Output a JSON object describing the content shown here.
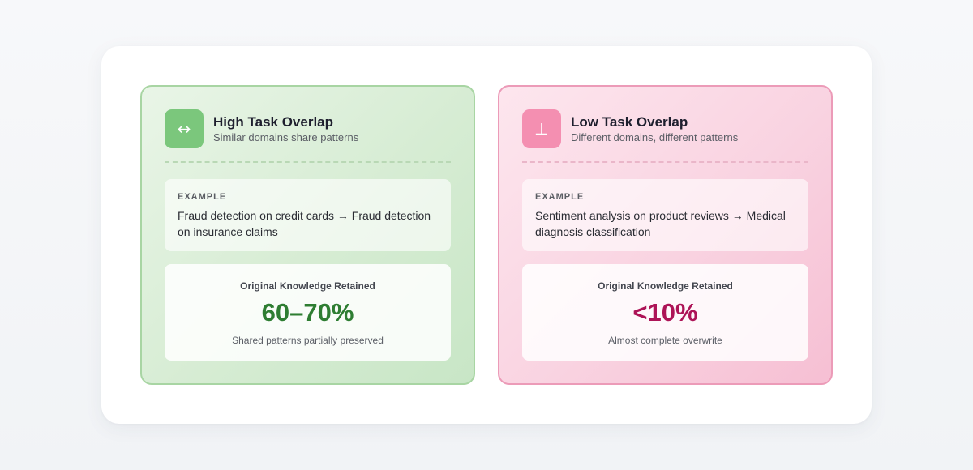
{
  "panels": [
    {
      "icon": "↔",
      "icon_name": "left-right-arrow-icon",
      "title": "High Task Overlap",
      "subtitle": "Similar domains share patterns",
      "example_label": "EXAMPLE",
      "example_text": "Fraud detection on credit cards → Fraud detection on insurance claims",
      "stat_label": "Original Knowledge Retained",
      "stat_value": "60–70%",
      "stat_note": "Shared patterns partially preserved",
      "accent": "#2e7d32"
    },
    {
      "icon": "⊥",
      "icon_name": "perpendicular-icon",
      "title": "Low Task Overlap",
      "subtitle": "Different domains, different patterns",
      "example_label": "EXAMPLE",
      "example_text": "Sentiment analysis on product reviews → Medical diagnosis classification",
      "stat_label": "Original Knowledge Retained",
      "stat_value": "<10%",
      "stat_note": "Almost complete overwrite",
      "accent": "#ad1457"
    }
  ]
}
